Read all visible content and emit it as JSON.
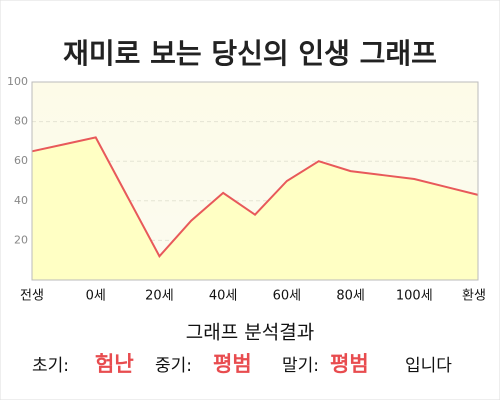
{
  "header": {
    "title": "재미로 보는 당신의 인생 그래프"
  },
  "chart_data": {
    "type": "line",
    "categories": [
      "전생",
      null,
      "0세",
      null,
      "20세",
      null,
      "40세",
      null,
      "60세",
      null,
      "80세",
      null,
      "100세",
      null,
      "환생"
    ],
    "values": [
      65,
      68.5,
      72,
      42,
      12,
      30,
      44,
      33,
      50,
      60,
      55,
      53,
      51,
      47,
      43
    ],
    "color": "#e8595a",
    "fill": "#ffffc4",
    "ylim": [
      0,
      100
    ],
    "yticks": [
      20,
      40,
      60,
      80,
      100
    ],
    "grid": true
  },
  "result": {
    "heading": "그래프 분석결과",
    "early_label": "초기:",
    "early": "험난",
    "mid_label": "중기:",
    "mid": "평범",
    "late_label": "말기:",
    "late": "평범",
    "ending": "입니다"
  }
}
